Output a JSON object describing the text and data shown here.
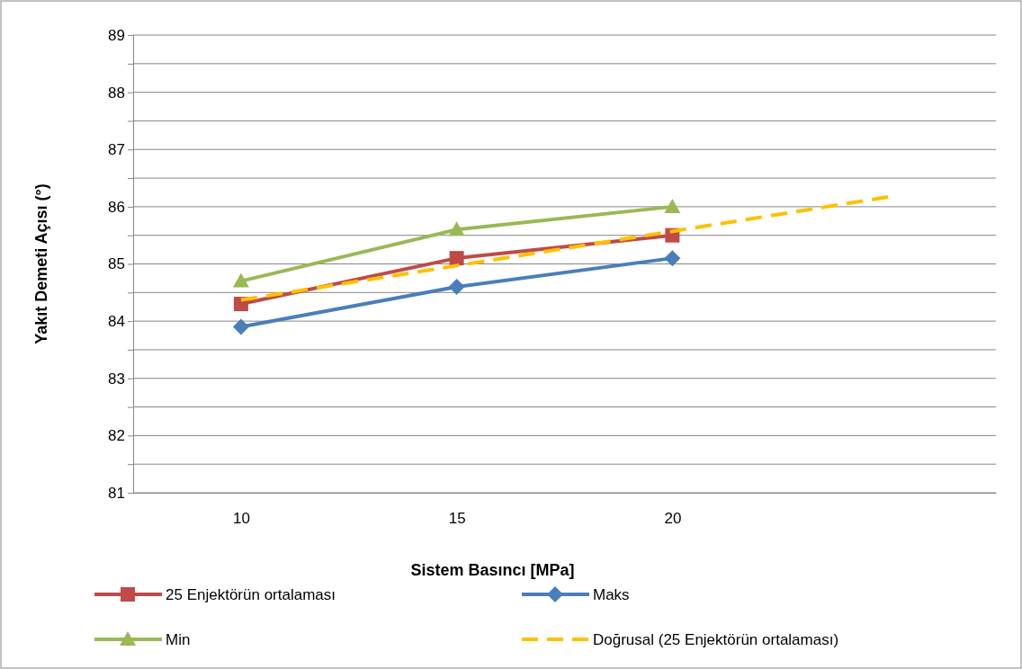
{
  "chart_data": {
    "type": "line",
    "xlabel": "Sistem Basıncı [MPa]",
    "ylabel": "Yakıt Demeti Açısı (°)",
    "x": [
      10,
      15,
      20
    ],
    "xlim": [
      7.5,
      27.5
    ],
    "xticks": [
      10,
      15,
      20
    ],
    "ylim": [
      81,
      89
    ],
    "yticks": [
      81,
      {
        "value": 81.5,
        "label": null
      },
      82,
      {
        "value": 82.5,
        "label": null
      },
      83,
      {
        "value": 83.5,
        "label": null
      },
      84,
      {
        "value": 84.5,
        "label": null
      },
      85,
      {
        "value": 85.5,
        "label": null
      },
      86,
      {
        "value": 86.5,
        "label": null
      },
      87,
      {
        "value": 87.5,
        "label": null
      },
      88,
      {
        "value": 88.5,
        "label": null
      },
      89
    ],
    "grid": "y",
    "legend": "bottom",
    "series": [
      {
        "name": "25 Enjektörün ortalaması",
        "color": "#be4b48",
        "values": [
          84.3,
          85.1,
          85.5
        ],
        "marker": "square",
        "line_style": "solid"
      },
      {
        "name": "Maks",
        "color": "#4a7ebb",
        "values": [
          83.9,
          84.6,
          85.1
        ],
        "marker": "diamond",
        "line_style": "solid"
      },
      {
        "name": "Min",
        "color": "#98b954",
        "values": [
          84.7,
          85.6,
          86.0
        ],
        "marker": "triangle",
        "line_style": "solid"
      },
      {
        "name": "Doğrusal (25 Enjektörün ortalaması)",
        "color": "#ffc000",
        "x": [
          10,
          25
        ],
        "values": [
          84.37,
          86.17
        ],
        "marker": "none",
        "line_style": "dashed"
      }
    ]
  }
}
